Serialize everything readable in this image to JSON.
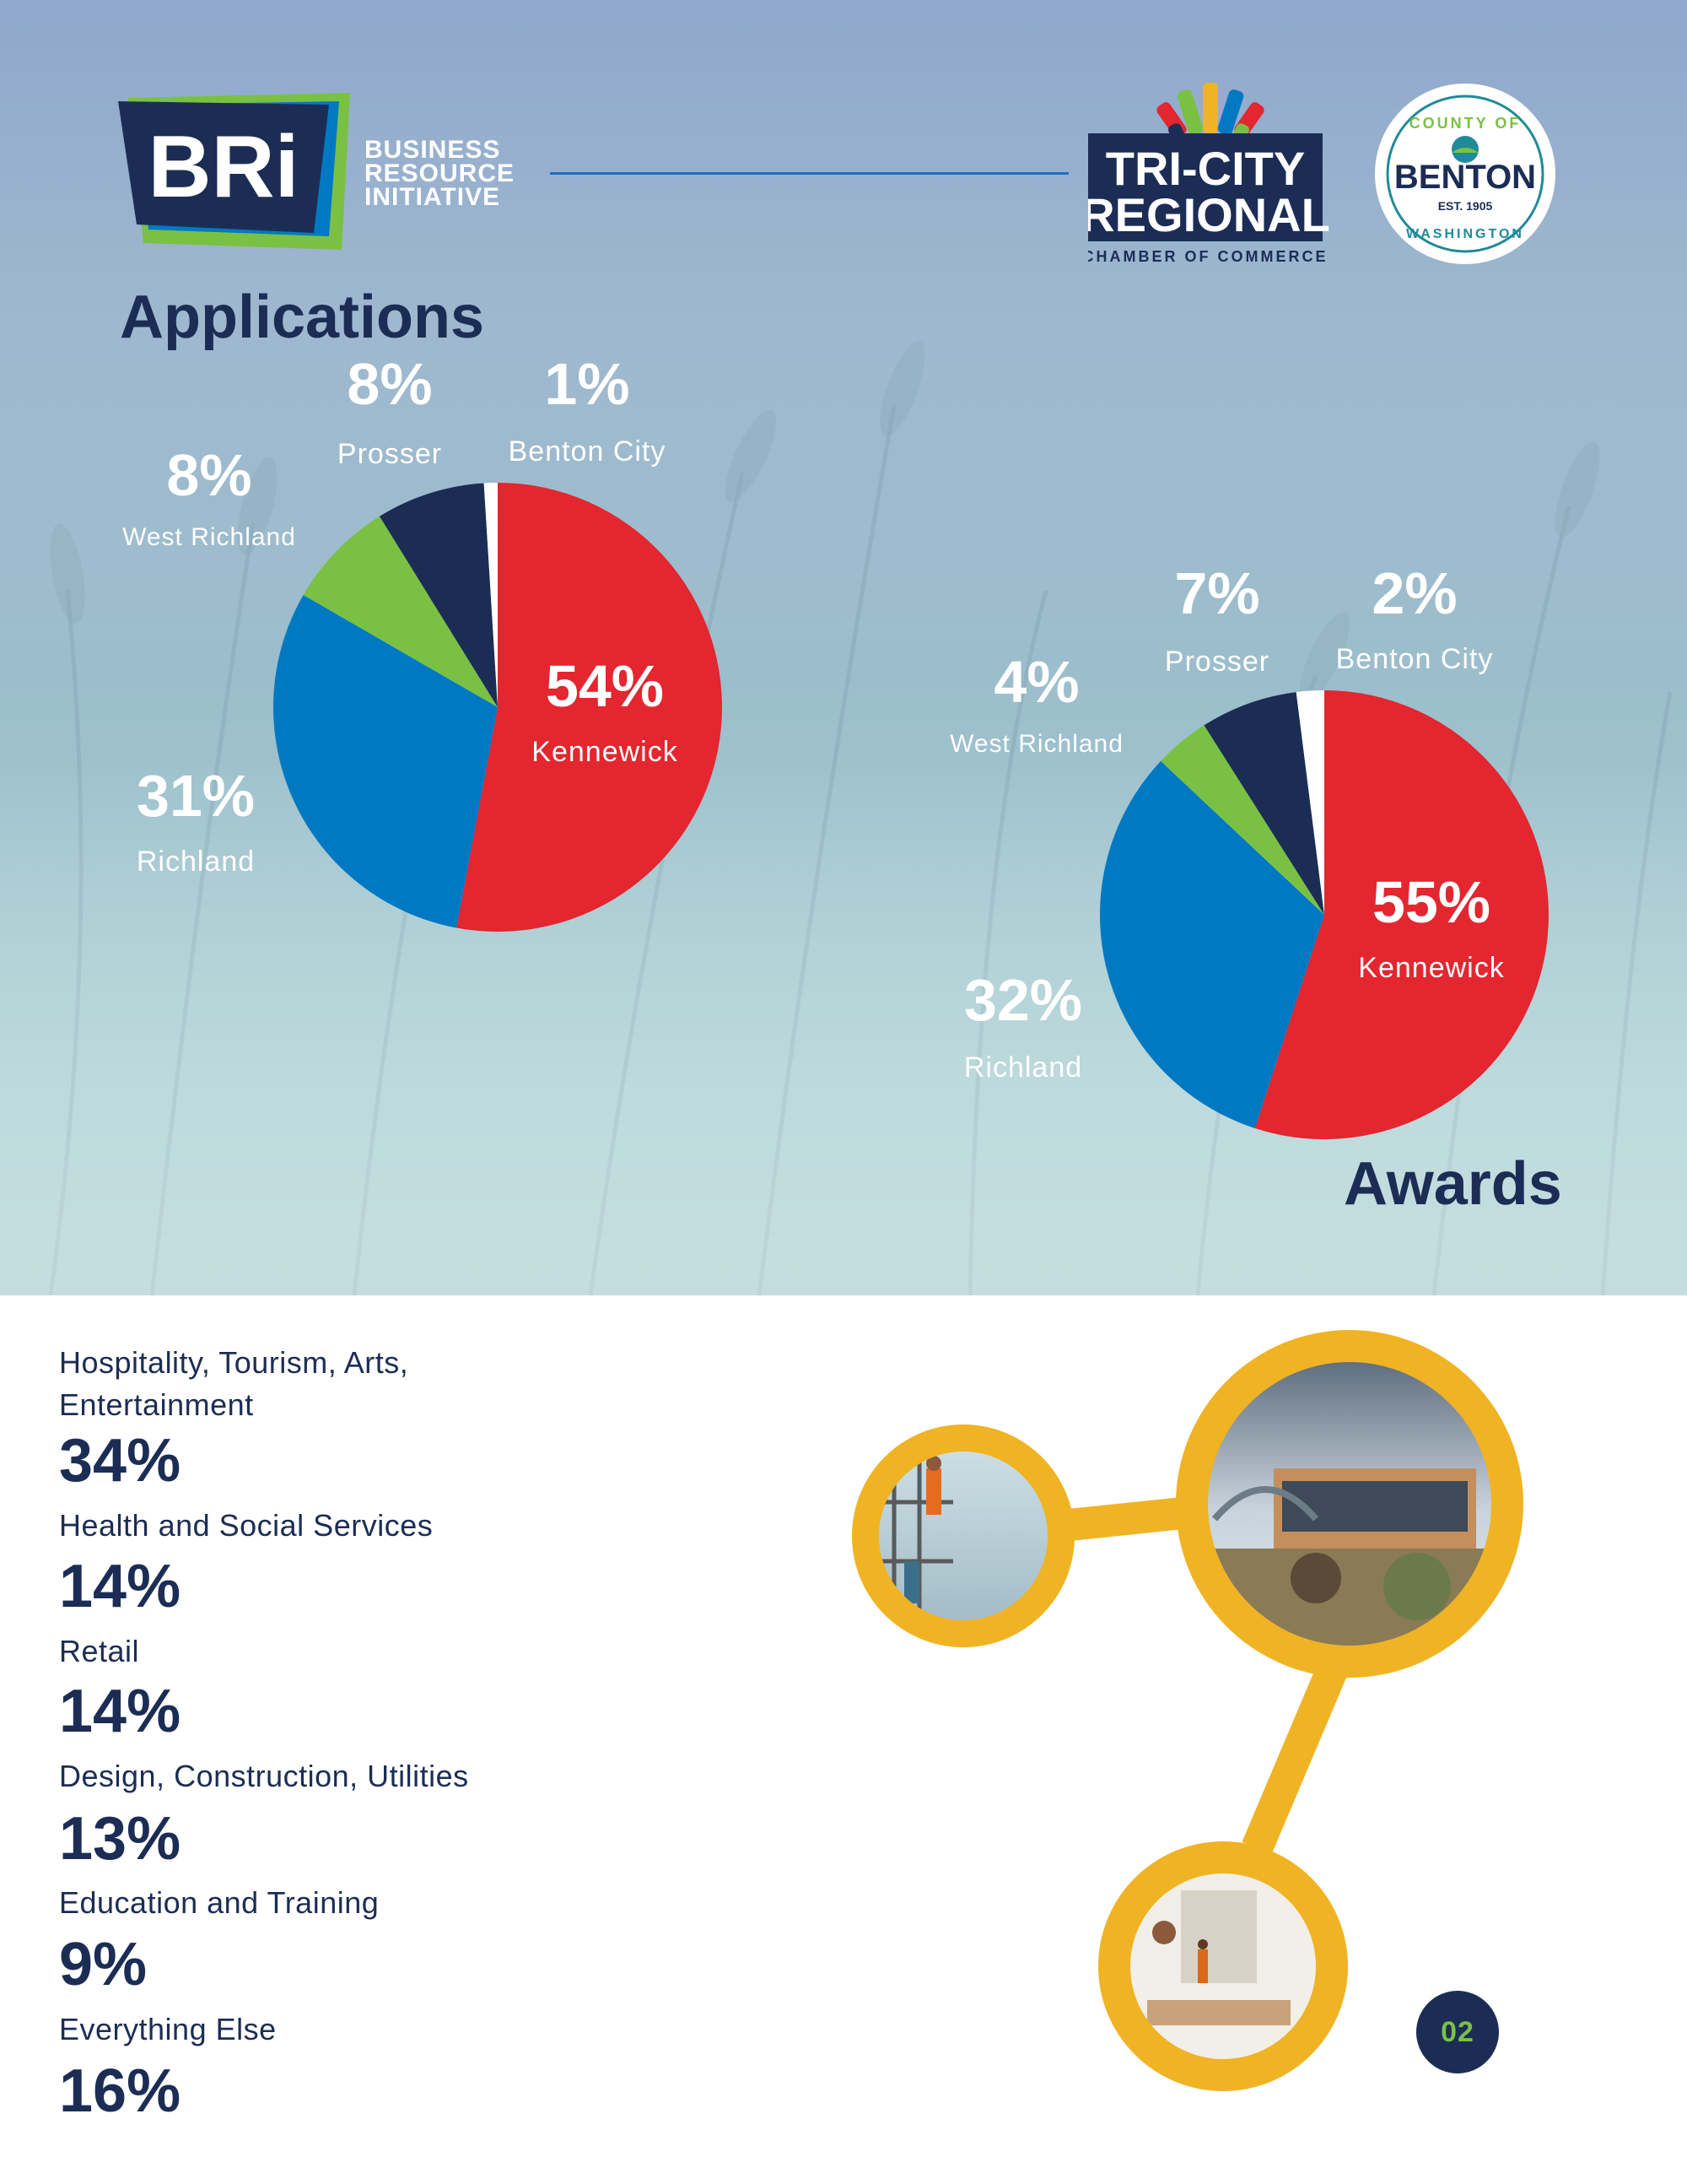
{
  "header": {
    "bri_mark": "BRi",
    "bri_lines": [
      "BUSINESS",
      "RESOURCE",
      "INITIATIVE"
    ],
    "tricity_lines": [
      "TRI-CITY",
      "REGIONAL",
      "CHAMBER OF COMMERCE"
    ],
    "benton_lines": [
      "COUNTY OF",
      "BENTON",
      "EST. 1905",
      "WASHINGTON"
    ]
  },
  "colors": {
    "navy": "#1c2d55",
    "red": "#e3262f",
    "blue": "#0079c2",
    "green": "#7ac143",
    "white": "#ffffff",
    "gold": "#f0b323"
  },
  "chart_data": [
    {
      "type": "pie",
      "title": "Applications",
      "categories": [
        "Kennewick",
        "Richland",
        "West Richland",
        "Prosser",
        "Benton City"
      ],
      "values": [
        54,
        31,
        8,
        8,
        1
      ],
      "labels": [
        "54%",
        "31%",
        "8%",
        "8%",
        "1%"
      ],
      "colors": [
        "#e3262f",
        "#0079c2",
        "#7ac143",
        "#1c2d55",
        "#ffffff"
      ]
    },
    {
      "type": "pie",
      "title": "Awards",
      "categories": [
        "Kennewick",
        "Richland",
        "West Richland",
        "Prosser",
        "Benton City"
      ],
      "values": [
        55,
        32,
        4,
        7,
        2
      ],
      "labels": [
        "55%",
        "32%",
        "4%",
        "7%",
        "2%"
      ],
      "colors": [
        "#e3262f",
        "#0079c2",
        "#7ac143",
        "#1c2d55",
        "#ffffff"
      ]
    }
  ],
  "sectors": [
    {
      "label": "Hospitality, Tourism, Arts, Entertainment",
      "value": "34%"
    },
    {
      "label": "Health and Social Services",
      "value": "14%"
    },
    {
      "label": "Retail",
      "value": "14%"
    },
    {
      "label": "Design, Construction, Utilities",
      "value": "13%"
    },
    {
      "label": "Education and Training",
      "value": "9%"
    },
    {
      "label": "Everything Else",
      "value": "16%"
    }
  ],
  "photos": [
    "construction-workers-photo",
    "building-photo",
    "boutique-interior-photo"
  ],
  "page_number": "02"
}
